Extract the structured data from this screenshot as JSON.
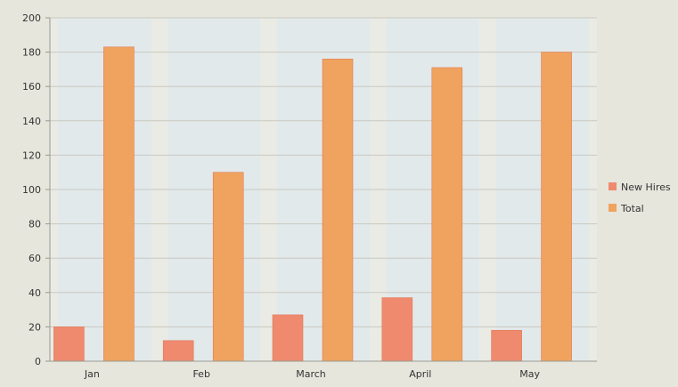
{
  "chart_data": {
    "type": "bar",
    "categories": [
      "Jan",
      "Feb",
      "March",
      "April",
      "May"
    ],
    "series": [
      {
        "name": "New Hires",
        "values": [
          20,
          12,
          27,
          37,
          18
        ],
        "color": "#ef8a6f"
      },
      {
        "name": "Total",
        "values": [
          183,
          110,
          176,
          171,
          180
        ],
        "color": "#f0a35e"
      }
    ],
    "ylim": [
      0,
      200
    ],
    "yticks": [
      0,
      20,
      40,
      60,
      80,
      100,
      120,
      140,
      160,
      180,
      200
    ],
    "grid": true,
    "legend_position": "right",
    "colors": {
      "background": "#e6e6dd",
      "plot_background": "#e9ebe4",
      "column_band": "#dfe8ee",
      "gridline": "#c9c9c0",
      "axis": "#9a9a90"
    }
  }
}
